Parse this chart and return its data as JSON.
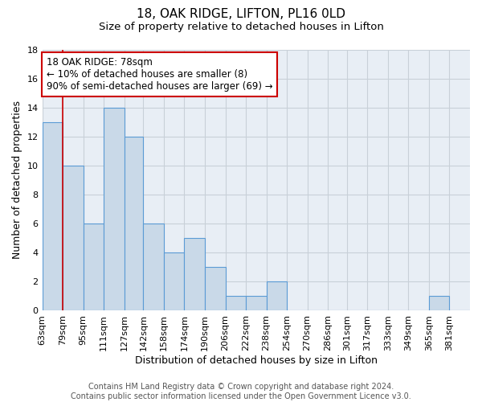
{
  "title": "18, OAK RIDGE, LIFTON, PL16 0LD",
  "subtitle": "Size of property relative to detached houses in Lifton",
  "xlabel": "Distribution of detached houses by size in Lifton",
  "ylabel": "Number of detached properties",
  "footer_line1": "Contains HM Land Registry data © Crown copyright and database right 2024.",
  "footer_line2": "Contains public sector information licensed under the Open Government Licence v3.0.",
  "bin_labels": [
    "63sqm",
    "79sqm",
    "95sqm",
    "111sqm",
    "127sqm",
    "142sqm",
    "158sqm",
    "174sqm",
    "190sqm",
    "206sqm",
    "222sqm",
    "238sqm",
    "254sqm",
    "270sqm",
    "286sqm",
    "301sqm",
    "317sqm",
    "333sqm",
    "349sqm",
    "365sqm",
    "381sqm"
  ],
  "bin_edges": [
    63,
    79,
    95,
    111,
    127,
    142,
    158,
    174,
    190,
    206,
    222,
    238,
    254,
    270,
    286,
    301,
    317,
    333,
    349,
    365,
    381,
    397
  ],
  "counts": [
    13,
    10,
    6,
    14,
    12,
    6,
    4,
    5,
    3,
    1,
    1,
    2,
    0,
    0,
    0,
    0,
    0,
    0,
    0,
    1,
    0
  ],
  "bar_color": "#c9d9e8",
  "bar_edge_color": "#5b9bd5",
  "grid_color": "#c8d0d8",
  "property_size": 78,
  "red_line_x": 79,
  "annotation_line1": "18 OAK RIDGE: 78sqm",
  "annotation_line2": "← 10% of detached houses are smaller (8)",
  "annotation_line3": "90% of semi-detached houses are larger (69) →",
  "annotation_box_color": "#ffffff",
  "annotation_box_edge": "#cc0000",
  "ylim": [
    0,
    18
  ],
  "yticks": [
    0,
    2,
    4,
    6,
    8,
    10,
    12,
    14,
    16,
    18
  ],
  "title_fontsize": 11,
  "subtitle_fontsize": 9.5,
  "axis_label_fontsize": 9,
  "tick_fontsize": 8,
  "footer_fontsize": 7,
  "annotation_fontsize": 8.5,
  "bg_color": "#e8eef5"
}
